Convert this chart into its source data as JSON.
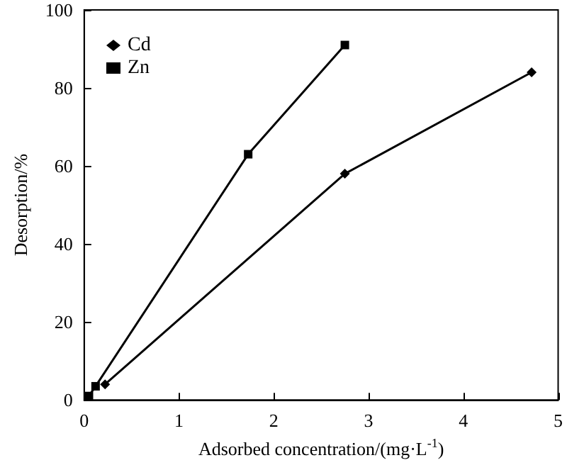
{
  "chart_data": {
    "type": "line",
    "xlabel": "Adsorbed concentration/(mg·L$^{-1}$)",
    "ylabel": "Desorption/%",
    "xlim": [
      0,
      5
    ],
    "xticks": [
      0,
      1,
      2,
      3,
      4,
      5
    ],
    "ylim": [
      0,
      100
    ],
    "yticks": [
      0,
      20,
      40,
      60,
      80,
      100
    ],
    "grid": false,
    "legend": "top left",
    "series": [
      {
        "name": "Cd",
        "color": "#000000",
        "marker": "diamond",
        "x": [
          0.22,
          2.75,
          4.72
        ],
        "values": [
          4,
          58,
          84
        ]
      },
      {
        "name": "Zn",
        "color": "#000000",
        "marker": "square",
        "x": [
          0.05,
          0.12,
          1.73,
          2.75
        ],
        "values": [
          1,
          3.5,
          63,
          91
        ]
      }
    ]
  }
}
